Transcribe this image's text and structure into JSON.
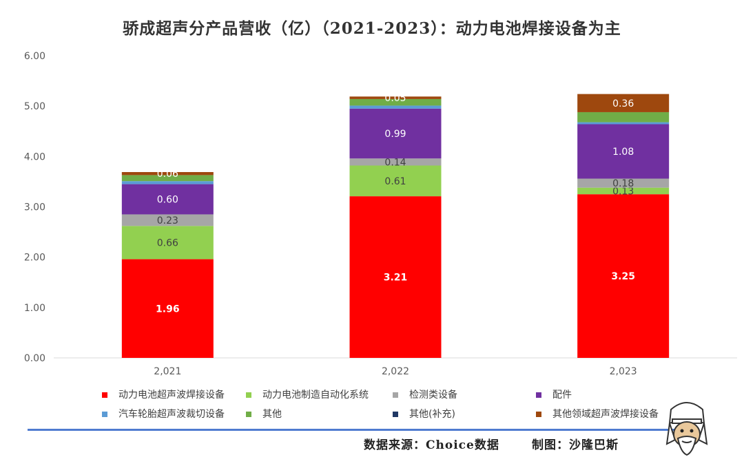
{
  "chart_data": {
    "type": "bar",
    "stacked": true,
    "title": "骄成超声分产品营收（亿）（2021-2023）：动力电池焊接设备为主",
    "categories": [
      "2,021",
      "2,022",
      "2,023"
    ],
    "y_ticks": [
      "0.00",
      "1.00",
      "2.00",
      "3.00",
      "4.00",
      "5.00",
      "6.00"
    ],
    "ylim": [
      0,
      6
    ],
    "grid": false,
    "legend_position": "bottom",
    "series": [
      {
        "name": "动力电池超声波焊接设备",
        "color": "#ff0000",
        "values": [
          1.96,
          3.21,
          3.25
        ],
        "labels": [
          "1.96",
          "3.21",
          "3.25"
        ]
      },
      {
        "name": "动力电池制造自动化系统",
        "color": "#92d050",
        "values": [
          0.66,
          0.61,
          0.13
        ],
        "labels": [
          "0.66",
          "0.61",
          "0.13"
        ]
      },
      {
        "name": "检测类设备",
        "color": "#a6a6a6",
        "values": [
          0.23,
          0.14,
          0.18
        ],
        "labels": [
          "0.23",
          "0.14",
          "0.18"
        ]
      },
      {
        "name": "配件",
        "color": "#7030a0",
        "values": [
          0.6,
          0.99,
          1.08
        ],
        "labels": [
          "0.60",
          "0.99",
          "1.08"
        ]
      },
      {
        "name": "汽车轮胎超声波裁切设备",
        "color": "#5b9bd5",
        "values": [
          0.06,
          0.06,
          0.04
        ],
        "labels": [
          "",
          "",
          ""
        ]
      },
      {
        "name": "其他",
        "color": "#70ad47",
        "values": [
          0.12,
          0.13,
          0.2
        ],
        "labels": [
          "",
          "",
          ""
        ]
      },
      {
        "name": "其他(补充)",
        "color": "#203864",
        "values": [
          0.0,
          0.0,
          0.0
        ],
        "labels": [
          "",
          "",
          ""
        ]
      },
      {
        "name": "其他领域超声波焊接设备",
        "color": "#9e480e",
        "values": [
          0.06,
          0.05,
          0.36
        ],
        "labels": [
          "0.06",
          "0.05",
          "0.36"
        ]
      }
    ]
  },
  "footer": {
    "source": "数据来源：Choice数据",
    "credit": "制图：沙隆巴斯"
  }
}
